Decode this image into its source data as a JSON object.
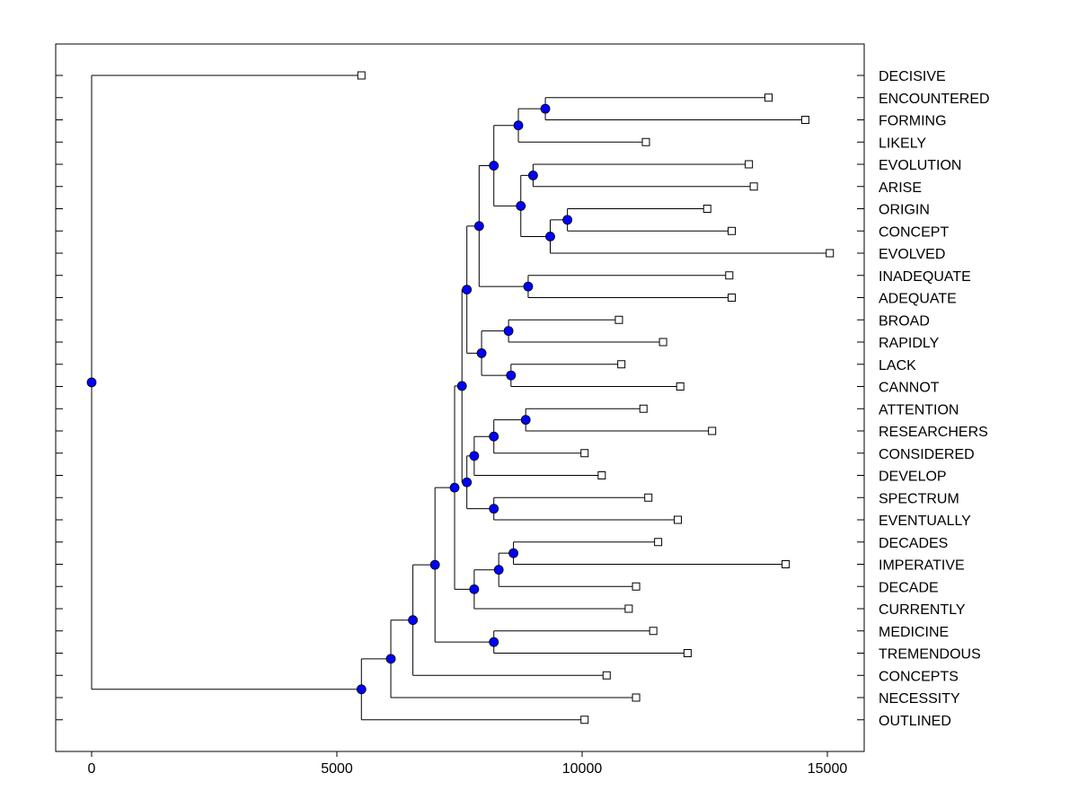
{
  "chart_data": {
    "type": "dendrogram",
    "orientation": "horizontal",
    "xlim": [
      -750,
      15750
    ],
    "x_ticks": [
      0,
      5000,
      10000,
      15000
    ],
    "x_tick_labels": [
      "0",
      "5000",
      "10000",
      "15000"
    ],
    "grid": false,
    "legend": "none",
    "colors": {
      "node_fill": "#0000ff",
      "line": "#000000",
      "leaf_fill": "#ffffff"
    },
    "leaves": [
      {
        "label": "DECISIVE",
        "value": 5500
      },
      {
        "label": "ENCOUNTERED",
        "value": 13800
      },
      {
        "label": "FORMING",
        "value": 14550
      },
      {
        "label": "LIKELY",
        "value": 11300
      },
      {
        "label": "EVOLUTION",
        "value": 13400
      },
      {
        "label": "ARISE",
        "value": 13500
      },
      {
        "label": "ORIGIN",
        "value": 12550
      },
      {
        "label": "CONCEPT",
        "value": 13050
      },
      {
        "label": "EVOLVED",
        "value": 15050
      },
      {
        "label": "INADEQUATE",
        "value": 13000
      },
      {
        "label": "ADEQUATE",
        "value": 13050
      },
      {
        "label": "BROAD",
        "value": 10750
      },
      {
        "label": "RAPIDLY",
        "value": 11650
      },
      {
        "label": "LACK",
        "value": 10800
      },
      {
        "label": "CANNOT",
        "value": 12000
      },
      {
        "label": "ATTENTION",
        "value": 11250
      },
      {
        "label": "RESEARCHERS",
        "value": 12650
      },
      {
        "label": "CONSIDERED",
        "value": 10050
      },
      {
        "label": "DEVELOP",
        "value": 10400
      },
      {
        "label": "SPECTRUM",
        "value": 11350
      },
      {
        "label": "EVENTUALLY",
        "value": 11950
      },
      {
        "label": "DECADES",
        "value": 11550
      },
      {
        "label": "IMPERATIVE",
        "value": 14150
      },
      {
        "label": "DECADE",
        "value": 11100
      },
      {
        "label": "CURRENTLY",
        "value": 10950
      },
      {
        "label": "MEDICINE",
        "value": 11450
      },
      {
        "label": "TREMENDOUS",
        "value": 12150
      },
      {
        "label": "CONCEPTS",
        "value": 10500
      },
      {
        "label": "NECESSITY",
        "value": 11100
      },
      {
        "label": "OUTLINED",
        "value": 10050
      }
    ],
    "merges": [
      {
        "id": "n_ef",
        "value": 9250,
        "children": [
          "ENCOUNTERED",
          "FORMING"
        ]
      },
      {
        "id": "n_efl",
        "value": 8700,
        "children": [
          "n_ef",
          "LIKELY"
        ]
      },
      {
        "id": "n_ea",
        "value": 9000,
        "children": [
          "EVOLUTION",
          "ARISE"
        ]
      },
      {
        "id": "n_oc",
        "value": 9700,
        "children": [
          "ORIGIN",
          "CONCEPT"
        ]
      },
      {
        "id": "n_oce",
        "value": 9350,
        "children": [
          "n_oc",
          "EVOLVED"
        ]
      },
      {
        "id": "n_eaoce",
        "value": 8750,
        "children": [
          "n_ea",
          "n_oce"
        ]
      },
      {
        "id": "n_top8",
        "value": 8200,
        "children": [
          "n_efl",
          "n_eaoce"
        ]
      },
      {
        "id": "n_ia",
        "value": 8900,
        "children": [
          "INADEQUATE",
          "ADEQUATE"
        ]
      },
      {
        "id": "n_top10",
        "value": 7900,
        "children": [
          "n_top8",
          "n_ia"
        ]
      },
      {
        "id": "n_br",
        "value": 8500,
        "children": [
          "BROAD",
          "RAPIDLY"
        ]
      },
      {
        "id": "n_lc",
        "value": 8550,
        "children": [
          "LACK",
          "CANNOT"
        ]
      },
      {
        "id": "n_brlc",
        "value": 7950,
        "children": [
          "n_br",
          "n_lc"
        ]
      },
      {
        "id": "n_upper",
        "value": 7650,
        "children": [
          "n_top10",
          "n_brlc"
        ]
      },
      {
        "id": "n_ar",
        "value": 8850,
        "children": [
          "ATTENTION",
          "RESEARCHERS"
        ]
      },
      {
        "id": "n_arc",
        "value": 8200,
        "children": [
          "n_ar",
          "CONSIDERED"
        ]
      },
      {
        "id": "n_arcd",
        "value": 7800,
        "children": [
          "n_arc",
          "DEVELOP"
        ]
      },
      {
        "id": "n_se",
        "value": 8200,
        "children": [
          "SPECTRUM",
          "EVENTUALLY"
        ]
      },
      {
        "id": "n_mid",
        "value": 7650,
        "children": [
          "n_arcd",
          "n_se"
        ]
      },
      {
        "id": "n_um",
        "value": 7550,
        "children": [
          "n_upper",
          "n_mid"
        ]
      },
      {
        "id": "n_di",
        "value": 8600,
        "children": [
          "DECADES",
          "IMPERATIVE"
        ]
      },
      {
        "id": "n_did",
        "value": 8300,
        "children": [
          "n_di",
          "DECADE"
        ]
      },
      {
        "id": "n_didc",
        "value": 7800,
        "children": [
          "n_did",
          "CURRENTLY"
        ]
      },
      {
        "id": "n_umd",
        "value": 7400,
        "children": [
          "n_um",
          "n_didc"
        ]
      },
      {
        "id": "n_mt",
        "value": 8200,
        "children": [
          "MEDICINE",
          "TREMENDOUS"
        ]
      },
      {
        "id": "n_umdmt",
        "value": 7000,
        "children": [
          "n_umd",
          "n_mt"
        ]
      },
      {
        "id": "n_c",
        "value": 6550,
        "children": [
          "n_umdmt",
          "CONCEPTS"
        ]
      },
      {
        "id": "n_n",
        "value": 6100,
        "children": [
          "n_c",
          "NECESSITY"
        ]
      },
      {
        "id": "n_o",
        "value": 5500,
        "children": [
          "n_n",
          "OUTLINED"
        ]
      },
      {
        "id": "n_root",
        "value": 0,
        "children": [
          "DECISIVE",
          "n_o"
        ]
      }
    ]
  }
}
